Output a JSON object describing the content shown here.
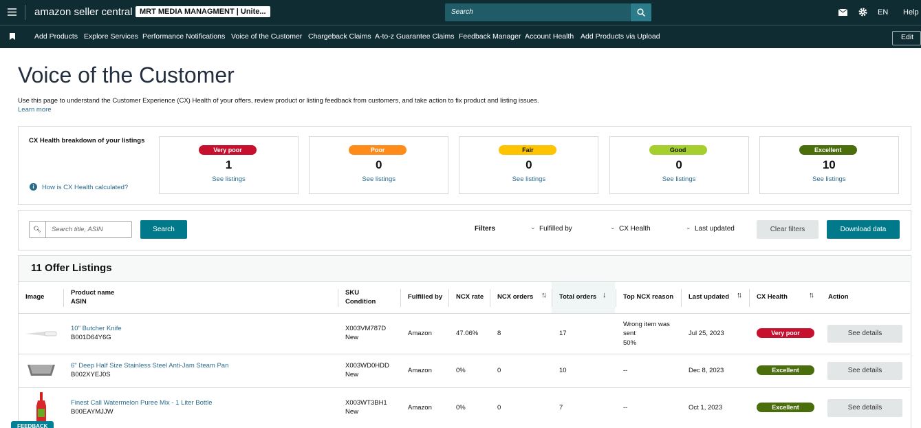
{
  "header": {
    "logo": "amazon seller central",
    "account": "MRT MEDIA MANAGMENT | Unite...",
    "search_placeholder": "Search",
    "language": "EN",
    "help": "Help"
  },
  "nav": {
    "items": [
      "Add Products",
      "Explore Services",
      "Performance Notifications",
      "Voice of the Customer",
      "Chargeback Claims",
      "A-to-z Guarantee Claims",
      "Feedback Manager",
      "Account Health",
      "Add Products via Upload"
    ],
    "edit": "Edit"
  },
  "page": {
    "title": "Voice of the Customer",
    "description": "Use this page to understand the Customer Experience (CX) Health of your offers, review product or listing feedback from customers, and take action to fix product and listing issues.",
    "learn_more": "Learn more"
  },
  "breakdown": {
    "label": "CX Health breakdown of your listings",
    "help": "How is CX Health calculated?",
    "cards": [
      {
        "badge": "Very poor",
        "color": "#c7102d",
        "count": 1,
        "link": "See listings"
      },
      {
        "badge": "Poor",
        "color": "#ff8c1a",
        "count": 0,
        "link": "See listings"
      },
      {
        "badge": "Fair",
        "color": "#ffc400",
        "count": 0,
        "link": "See listings"
      },
      {
        "badge": "Good",
        "color": "#a4cf2e",
        "count": 0,
        "link": "See listings"
      },
      {
        "badge": "Excellent",
        "color": "#4b6e0c",
        "count": 10,
        "link": "See listings"
      }
    ]
  },
  "toolbar": {
    "search_placeholder": "Search title, ASIN",
    "search_button": "Search",
    "filters": "Filters",
    "dropdowns": [
      "Fulfilled by",
      "CX Health",
      "Last updated"
    ],
    "clear": "Clear filters",
    "download": "Download data"
  },
  "table": {
    "title": "11 Offer Listings",
    "columns": [
      [
        "Image"
      ],
      [
        "Product name",
        "ASIN"
      ],
      [
        "SKU",
        "Condition"
      ],
      [
        "Fulfilled by"
      ],
      [
        "NCX rate"
      ],
      [
        "NCX orders"
      ],
      [
        "Total orders"
      ],
      [
        "Top NCX reason"
      ],
      [
        "Last updated"
      ],
      [
        "CX Health"
      ],
      [
        "Action"
      ]
    ],
    "rows": [
      {
        "name": "10\" Butcher Knife",
        "asin": "B001D64Y6G",
        "sku": "X003VM787D",
        "condition": "New",
        "fulfilled": "Amazon",
        "ncx_rate": "47.06%",
        "ncx_orders": 8,
        "total_orders": 17,
        "reason": [
          "Wrong item was",
          "sent",
          "50%"
        ],
        "updated": "Jul 25, 2023",
        "health": "Very poor",
        "health_color": "#c7102d",
        "action": "See details"
      },
      {
        "name": "6\" Deep Half Size Stainless Steel Anti-Jam Steam Pan",
        "asin": "B002XYEJ0S",
        "sku": "X003WD0HDD",
        "condition": "New",
        "fulfilled": "Amazon",
        "ncx_rate": "0%",
        "ncx_orders": 0,
        "total_orders": 10,
        "reason": [
          "--"
        ],
        "updated": "Dec 8, 2023",
        "health": "Excellent",
        "health_color": "#4b6e0c",
        "action": "See details"
      },
      {
        "name": "Finest Call Watermelon Puree Mix - 1 Liter Bottle",
        "asin": "B00EAYMJJW",
        "sku": "X003WT3BH1",
        "condition": "New",
        "fulfilled": "Amazon",
        "ncx_rate": "0%",
        "ncx_orders": 0,
        "total_orders": 7,
        "reason": [
          "--"
        ],
        "updated": "Oct 1, 2023",
        "health": "Excellent",
        "health_color": "#4b6e0c",
        "action": "See details"
      }
    ]
  },
  "feedback": "FEEDBACK"
}
